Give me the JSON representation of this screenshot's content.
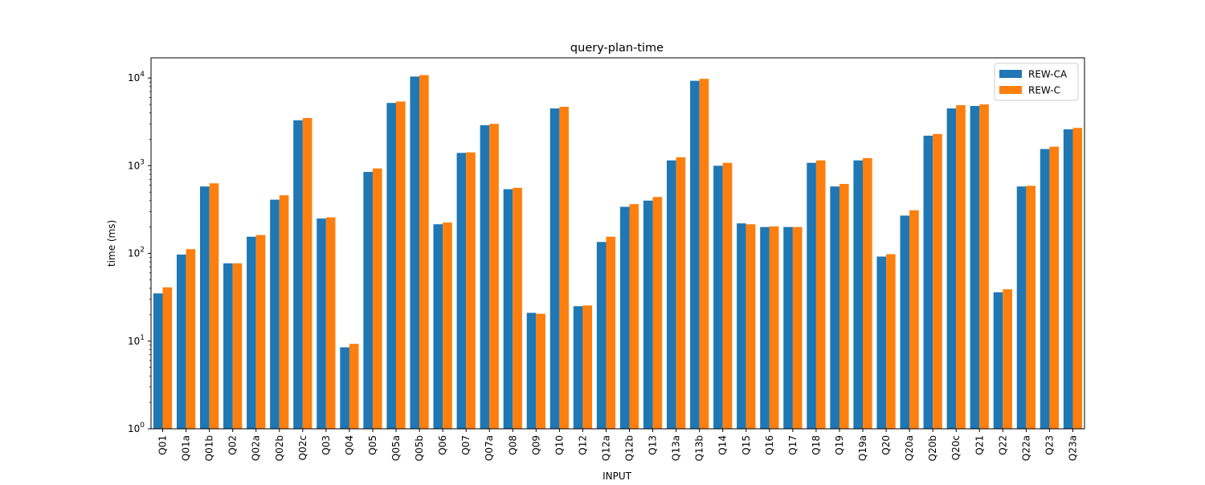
{
  "chart_data": {
    "type": "bar",
    "title": "query-plan-time",
    "xlabel": "INPUT",
    "ylabel": "time (ms)",
    "yscale": "log",
    "ylim": [
      1,
      17000
    ],
    "yticks": [
      1,
      10,
      100,
      1000,
      10000
    ],
    "ytick_labels": [
      {
        "base": "10",
        "exp": "0"
      },
      {
        "base": "10",
        "exp": "1"
      },
      {
        "base": "10",
        "exp": "2"
      },
      {
        "base": "10",
        "exp": "3"
      },
      {
        "base": "10",
        "exp": "4"
      }
    ],
    "grid": false,
    "legend_position": "top-right",
    "categories": [
      "Q01",
      "Q01a",
      "Q01b",
      "Q02",
      "Q02a",
      "Q02b",
      "Q02c",
      "Q03",
      "Q04",
      "Q05",
      "Q05a",
      "Q05b",
      "Q06",
      "Q07",
      "Q07a",
      "Q08",
      "Q09",
      "Q10",
      "Q12",
      "Q12a",
      "Q12b",
      "Q13",
      "Q13a",
      "Q13b",
      "Q14",
      "Q15",
      "Q16",
      "Q17",
      "Q18",
      "Q19",
      "Q19a",
      "Q20",
      "Q20a",
      "Q20b",
      "Q20c",
      "Q21",
      "Q22",
      "Q22a",
      "Q23",
      "Q23a"
    ],
    "series": [
      {
        "name": "REW-CA",
        "color": "#1f77b4",
        "values": [
          35,
          97,
          580,
          77,
          155,
          410,
          3300,
          250,
          8.5,
          850,
          5200,
          10400,
          215,
          1400,
          2900,
          540,
          21,
          4500,
          25,
          135,
          340,
          400,
          1150,
          9300,
          1000,
          220,
          200,
          200,
          1080,
          580,
          1150,
          92,
          270,
          2200,
          4500,
          4800,
          36,
          580,
          1550,
          2600
        ]
      },
      {
        "name": "REW-C",
        "color": "#ff7f0e",
        "values": [
          41,
          112,
          630,
          77,
          162,
          460,
          3500,
          258,
          9.3,
          930,
          5400,
          10800,
          225,
          1420,
          3000,
          560,
          20.5,
          4700,
          25.5,
          155,
          365,
          440,
          1250,
          9800,
          1080,
          215,
          203,
          200,
          1150,
          620,
          1220,
          98,
          310,
          2300,
          4900,
          5000,
          39,
          590,
          1650,
          2700
        ]
      }
    ]
  }
}
